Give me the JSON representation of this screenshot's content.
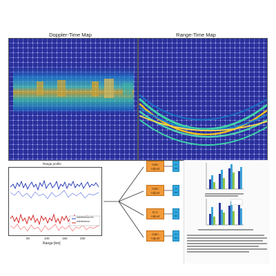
{
  "doppler_map": {
    "title": "Doppler-Time Map"
  },
  "range_map": {
    "title": "Range-Time Map"
  },
  "range_profile": {
    "title": "Range profile",
    "xlabel": "Range [km]",
    "xticks": [
      "50",
      "100",
      "150",
      "200"
    ],
    "legend": [
      "Interference-fre",
      "Interference"
    ]
  },
  "pipeline": {
    "gain_label": "Gain\nAdjust",
    "dc_label": "D.C\nAdjust",
    "filter_label": "Fi\nAd"
  },
  "figure_captions": {
    "caption_1": "",
    "caption_2": ""
  },
  "colors": {
    "heat_background": "#2b2f9a",
    "grid": "#aab0e6",
    "hot": "#f2c21b",
    "warm": "#3ed3a8",
    "orange_block": "#f29a3a",
    "cyan_block": "#2fa9e0"
  }
}
